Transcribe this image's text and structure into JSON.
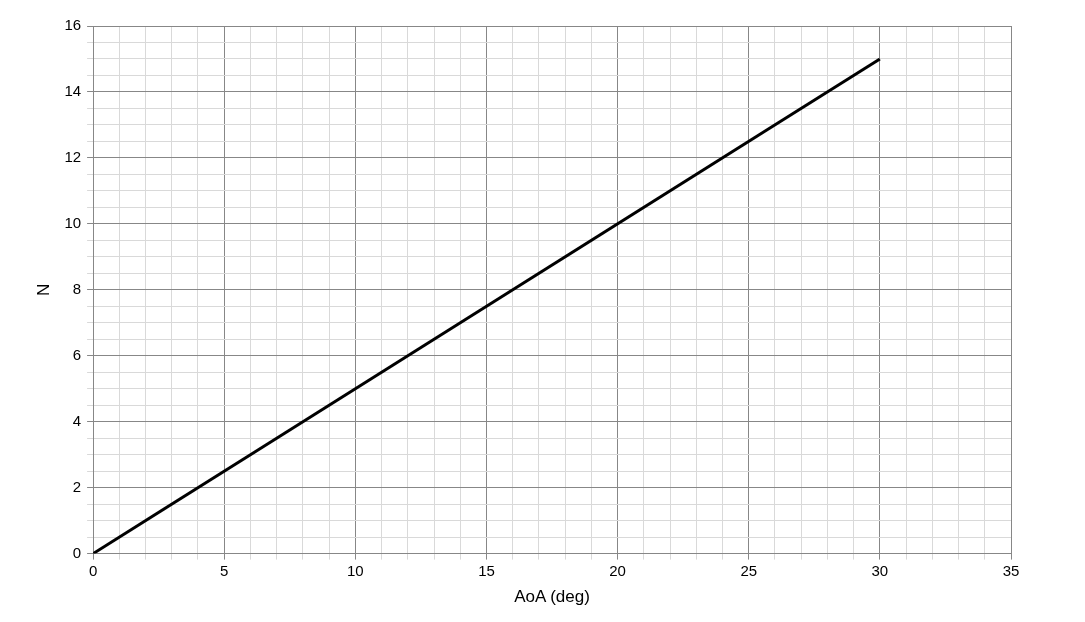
{
  "chart_data": {
    "type": "line",
    "xlabel": "AoA (deg)",
    "ylabel": "N",
    "series": [
      {
        "color": "#000000",
        "x": [
          0,
          30
        ],
        "values": [
          0,
          15
        ]
      }
    ],
    "xlim": [
      0,
      35
    ],
    "xticks": [
      0,
      {
        "value": 1,
        "label": null
      },
      {
        "value": 2,
        "label": null
      },
      {
        "value": 3,
        "label": null
      },
      {
        "value": 4,
        "label": null
      },
      5,
      {
        "value": 6,
        "label": null
      },
      {
        "value": 7,
        "label": null
      },
      {
        "value": 8,
        "label": null
      },
      {
        "value": 9,
        "label": null
      },
      10,
      {
        "value": 11,
        "label": null
      },
      {
        "value": 12,
        "label": null
      },
      {
        "value": 13,
        "label": null
      },
      {
        "value": 14,
        "label": null
      },
      15,
      {
        "value": 16,
        "label": null
      },
      {
        "value": 17,
        "label": null
      },
      {
        "value": 18,
        "label": null
      },
      {
        "value": 19,
        "label": null
      },
      20,
      {
        "value": 21,
        "label": null
      },
      {
        "value": 22,
        "label": null
      },
      {
        "value": 23,
        "label": null
      },
      {
        "value": 24,
        "label": null
      },
      25,
      {
        "value": 26,
        "label": null
      },
      {
        "value": 27,
        "label": null
      },
      {
        "value": 28,
        "label": null
      },
      {
        "value": 29,
        "label": null
      },
      30,
      {
        "value": 31,
        "label": null
      },
      {
        "value": 32,
        "label": null
      },
      {
        "value": 33,
        "label": null
      },
      {
        "value": 34,
        "label": null
      },
      35
    ],
    "ylim": [
      0,
      16
    ],
    "yticks": [
      0,
      {
        "value": 0.5,
        "label": null
      },
      {
        "value": 1,
        "label": null
      },
      {
        "value": 1.5,
        "label": null
      },
      2,
      {
        "value": 2.5,
        "label": null
      },
      {
        "value": 3,
        "label": null
      },
      {
        "value": 3.5,
        "label": null
      },
      4,
      {
        "value": 4.5,
        "label": null
      },
      {
        "value": 5,
        "label": null
      },
      {
        "value": 5.5,
        "label": null
      },
      6,
      {
        "value": 6.5,
        "label": null
      },
      {
        "value": 7,
        "label": null
      },
      {
        "value": 7.5,
        "label": null
      },
      8,
      {
        "value": 8.5,
        "label": null
      },
      {
        "value": 9,
        "label": null
      },
      {
        "value": 9.5,
        "label": null
      },
      10,
      {
        "value": 10.5,
        "label": null
      },
      {
        "value": 11,
        "label": null
      },
      {
        "value": 11.5,
        "label": null
      },
      12,
      {
        "value": 12.5,
        "label": null
      },
      {
        "value": 13,
        "label": null
      },
      {
        "value": 13.5,
        "label": null
      },
      14,
      {
        "value": 14.5,
        "label": null
      },
      {
        "value": 15,
        "label": null
      },
      {
        "value": 15.5,
        "label": null
      },
      16
    ],
    "grid": true,
    "legend": false,
    "marker": "none",
    "line_style": "solid"
  }
}
